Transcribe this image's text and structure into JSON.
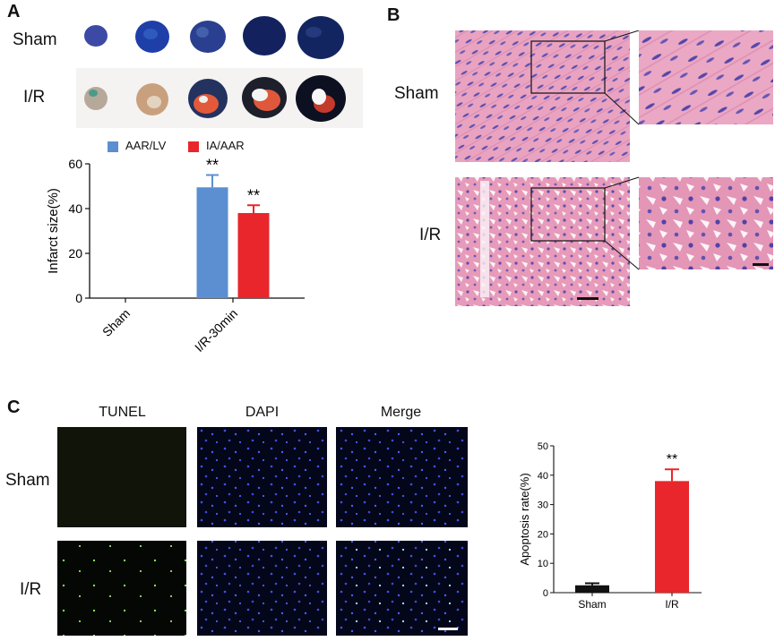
{
  "panels": {
    "a": {
      "letter": "A",
      "row_labels": [
        "Sham",
        "I/R"
      ],
      "legend": [
        {
          "label": "AAR/LV",
          "color": "#5b8fd1"
        },
        {
          "label": "IA/AAR",
          "color": "#e8262b"
        }
      ],
      "significance": "**"
    },
    "b": {
      "letter": "B",
      "row_labels": [
        "Sham",
        "I/R"
      ]
    },
    "c": {
      "letter": "C",
      "column_labels": [
        "TUNEL",
        "DAPI",
        "Merge"
      ],
      "row_labels": [
        "Sham",
        "I/R"
      ],
      "significance": "**"
    }
  },
  "chart_data": [
    {
      "type": "bar",
      "ylabel": "Infarct size(%)",
      "categories": [
        "Sham",
        "I/R-30min"
      ],
      "series": [
        {
          "name": "AAR/LV",
          "values": [
            0,
            49.5
          ],
          "errors": [
            0,
            5.5
          ],
          "color": "#5b8fd1"
        },
        {
          "name": "IA/AAR",
          "values": [
            0,
            38
          ],
          "errors": [
            0,
            3.5
          ],
          "color": "#e8262b"
        }
      ],
      "ylim": [
        0,
        60
      ],
      "yticks": [
        0,
        20,
        40,
        60
      ],
      "annotations": [
        "**",
        "**"
      ],
      "legend": "top"
    },
    {
      "type": "bar",
      "ylabel": "Apoptosis rate(%)",
      "categories": [
        "Sham",
        "I/R"
      ],
      "values": [
        2.5,
        38
      ],
      "errors": [
        0.7,
        4
      ],
      "colors": [
        "#111111",
        "#e8262b"
      ],
      "ylim": [
        0,
        50
      ],
      "yticks": [
        0,
        10,
        20,
        30,
        40,
        50
      ],
      "annotations": [
        "",
        "**"
      ]
    }
  ]
}
